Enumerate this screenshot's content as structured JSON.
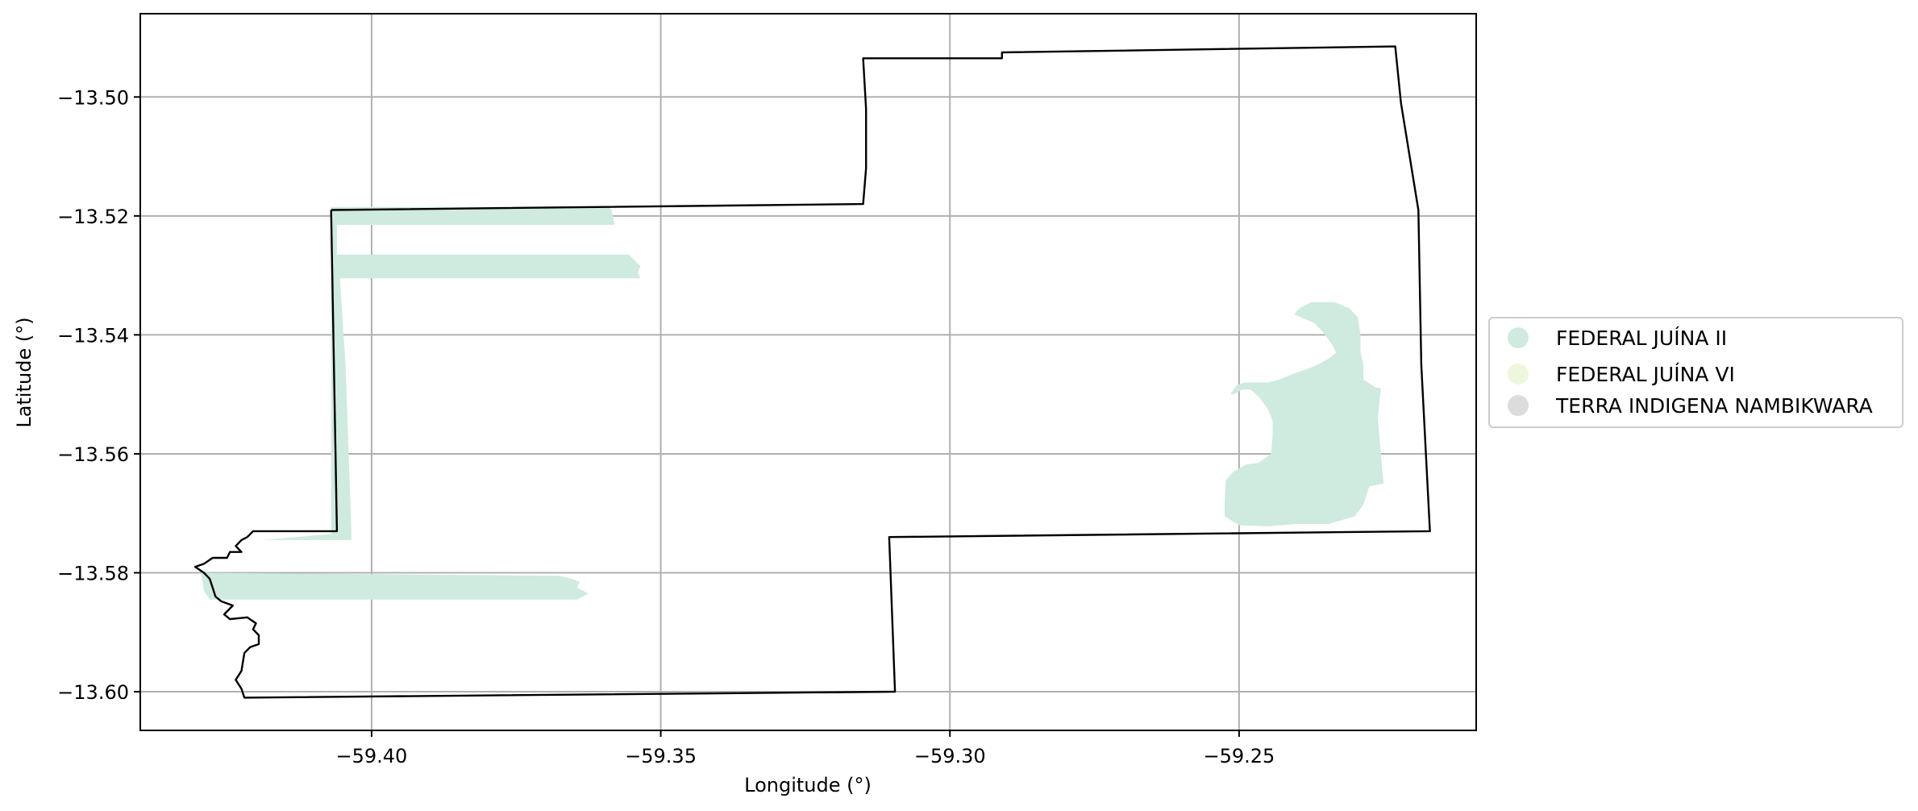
{
  "chart_data": {
    "type": "map",
    "xlabel": "Longitude (°)",
    "ylabel": "Latitude (°)",
    "xlim": [
      -59.44,
      -59.209
    ],
    "ylim": [
      -13.6065,
      -13.486
    ],
    "grid": true,
    "x_ticks": [
      -59.4,
      -59.35,
      -59.3,
      -59.25
    ],
    "x_tick_labels": [
      "−59.40",
      "−59.35",
      "−59.30",
      "−59.25"
    ],
    "y_ticks": [
      -13.5,
      -13.52,
      -13.54,
      -13.56,
      -13.58,
      -13.6
    ],
    "y_tick_labels": [
      "−13.50",
      "−13.52",
      "−13.54",
      "−13.56",
      "−13.58",
      "−13.60"
    ],
    "legend_position": "right",
    "legend": [
      {
        "label": "FEDERAL JUÍNA II",
        "color": "#cfeadf"
      },
      {
        "label": "FEDERAL JUÍNA VI",
        "color": "#eef7dc"
      },
      {
        "label": "TERRA INDIGENA NAMBIKWARA",
        "color": "#dcdcdc"
      }
    ],
    "boundary": {
      "name": "TERRA INDIGENA NAMBIKWARA",
      "color": "#000000",
      "coords": [
        [
          -59.407,
          -13.519
        ],
        [
          -59.315,
          -13.518
        ],
        [
          -59.3145,
          -13.512
        ],
        [
          -59.3145,
          -13.502
        ],
        [
          -59.315,
          -13.4935
        ],
        [
          -59.291,
          -13.4935
        ],
        [
          -59.291,
          -13.4925
        ],
        [
          -59.223,
          -13.4915
        ],
        [
          -59.222,
          -13.501
        ],
        [
          -59.219,
          -13.519
        ],
        [
          -59.2185,
          -13.545
        ],
        [
          -59.217,
          -13.573
        ],
        [
          -59.3105,
          -13.574
        ],
        [
          -59.3095,
          -13.6
        ],
        [
          -59.422,
          -13.601
        ],
        [
          -59.4225,
          -13.5995
        ],
        [
          -59.4235,
          -13.598
        ],
        [
          -59.4225,
          -13.5965
        ],
        [
          -59.422,
          -13.5935
        ],
        [
          -59.421,
          -13.5925
        ],
        [
          -59.4195,
          -13.592
        ],
        [
          -59.4195,
          -13.5905
        ],
        [
          -59.4205,
          -13.5895
        ],
        [
          -59.42,
          -13.5885
        ],
        [
          -59.4215,
          -13.5875
        ],
        [
          -59.4245,
          -13.5878
        ],
        [
          -59.4255,
          -13.587
        ],
        [
          -59.424,
          -13.5855
        ],
        [
          -59.426,
          -13.5848
        ],
        [
          -59.427,
          -13.584
        ],
        [
          -59.4275,
          -13.5825
        ],
        [
          -59.428,
          -13.581
        ],
        [
          -59.429,
          -13.58
        ],
        [
          -59.4305,
          -13.579
        ],
        [
          -59.429,
          -13.5785
        ],
        [
          -59.4275,
          -13.5775
        ],
        [
          -59.425,
          -13.5775
        ],
        [
          -59.4245,
          -13.5765
        ],
        [
          -59.4225,
          -13.5765
        ],
        [
          -59.4235,
          -13.5755
        ],
        [
          -59.4225,
          -13.5745
        ],
        [
          -59.4215,
          -13.574
        ],
        [
          -59.4205,
          -13.573
        ],
        [
          -59.406,
          -13.573
        ],
        [
          -59.407,
          -13.519
        ]
      ]
    },
    "areas": [
      {
        "series": "FEDERAL JUÍNA II",
        "coords": [
          [
            -59.407,
            -13.5185
          ],
          [
            -59.359,
            -13.5185
          ],
          [
            -59.3585,
            -13.519
          ],
          [
            -59.358,
            -13.5215
          ],
          [
            -59.406,
            -13.5215
          ],
          [
            -59.406,
            -13.5265
          ],
          [
            -59.3555,
            -13.5265
          ],
          [
            -59.3545,
            -13.5275
          ],
          [
            -59.3535,
            -13.5285
          ],
          [
            -59.354,
            -13.5295
          ],
          [
            -59.3535,
            -13.5305
          ],
          [
            -59.4055,
            -13.5305
          ],
          [
            -59.4045,
            -13.545
          ],
          [
            -59.4035,
            -13.573
          ],
          [
            -59.4035,
            -13.5745
          ],
          [
            -59.419,
            -13.5745
          ],
          [
            -59.407,
            -13.5735
          ],
          [
            -59.407,
            -13.5185
          ]
        ]
      },
      {
        "series": "FEDERAL JUÍNA II",
        "coords": [
          [
            -59.4295,
            -13.58
          ],
          [
            -59.3675,
            -13.5805
          ],
          [
            -59.3655,
            -13.581
          ],
          [
            -59.364,
            -13.5815
          ],
          [
            -59.3645,
            -13.5825
          ],
          [
            -59.3635,
            -13.583
          ],
          [
            -59.3625,
            -13.5835
          ],
          [
            -59.3645,
            -13.5845
          ],
          [
            -59.428,
            -13.5845
          ],
          [
            -59.429,
            -13.583
          ],
          [
            -59.4295,
            -13.58
          ]
        ]
      },
      {
        "series": "FEDERAL JUÍNA II",
        "coords": [
          [
            -59.2395,
            -13.5355
          ],
          [
            -59.2375,
            -13.5345
          ],
          [
            -59.2335,
            -13.5345
          ],
          [
            -59.231,
            -13.5355
          ],
          [
            -59.2295,
            -13.537
          ],
          [
            -59.229,
            -13.54
          ],
          [
            -59.229,
            -13.543
          ],
          [
            -59.2285,
            -13.545
          ],
          [
            -59.2285,
            -13.5475
          ],
          [
            -59.2265,
            -13.5488
          ],
          [
            -59.2255,
            -13.549
          ],
          [
            -59.226,
            -13.554
          ],
          [
            -59.2255,
            -13.56
          ],
          [
            -59.225,
            -13.565
          ],
          [
            -59.2275,
            -13.5655
          ],
          [
            -59.2285,
            -13.5685
          ],
          [
            -59.23,
            -13.5705
          ],
          [
            -59.2345,
            -13.5718
          ],
          [
            -59.24,
            -13.5718
          ],
          [
            -59.245,
            -13.5722
          ],
          [
            -59.25,
            -13.572
          ],
          [
            -59.2525,
            -13.5705
          ],
          [
            -59.2525,
            -13.568
          ],
          [
            -59.2523,
            -13.5645
          ],
          [
            -59.251,
            -13.563
          ],
          [
            -59.2488,
            -13.5618
          ],
          [
            -59.2466,
            -13.5615
          ],
          [
            -59.2445,
            -13.56
          ],
          [
            -59.2442,
            -13.557
          ],
          [
            -59.2442,
            -13.5545
          ],
          [
            -59.245,
            -13.5525
          ],
          [
            -59.2465,
            -13.5505
          ],
          [
            -59.248,
            -13.5492
          ],
          [
            -59.2495,
            -13.5492
          ],
          [
            -59.25,
            -13.5495
          ],
          [
            -59.251,
            -13.55
          ],
          [
            -59.2515,
            -13.55
          ],
          [
            -59.2505,
            -13.5485
          ],
          [
            -59.249,
            -13.548
          ],
          [
            -59.247,
            -13.548
          ],
          [
            -59.245,
            -13.548
          ],
          [
            -59.243,
            -13.5475
          ],
          [
            -59.2405,
            -13.5465
          ],
          [
            -59.2375,
            -13.5455
          ],
          [
            -59.236,
            -13.5448
          ],
          [
            -59.2345,
            -13.544
          ],
          [
            -59.2332,
            -13.543
          ],
          [
            -59.234,
            -13.5415
          ],
          [
            -59.2355,
            -13.5395
          ],
          [
            -59.237,
            -13.538
          ],
          [
            -59.239,
            -13.5372
          ],
          [
            -59.2405,
            -13.5365
          ],
          [
            -59.2395,
            -13.5355
          ]
        ]
      }
    ]
  }
}
